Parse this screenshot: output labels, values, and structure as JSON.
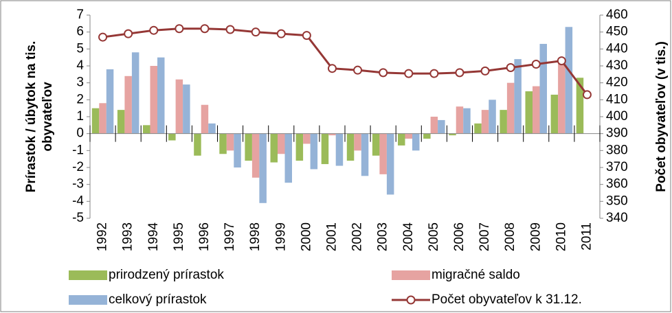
{
  "chart_data": {
    "type": "bar",
    "ylabel": [
      "Prírastok / úbytok na tis.",
      "obyvateľov"
    ],
    "y2label": "Počet obyvateľov (v tis.)",
    "categories": [
      "1992",
      "1993",
      "1994",
      "1995",
      "1996",
      "1997",
      "1998",
      "1999",
      "2000",
      "2001",
      "2002",
      "2003",
      "2004",
      "2005",
      "2006",
      "2007",
      "2008",
      "2009",
      "2010",
      "2011"
    ],
    "series": [
      {
        "name": "prirodzený prírastok",
        "color": "#9bbb59",
        "values": [
          1.5,
          1.4,
          0.5,
          -0.4,
          -1.3,
          -1.2,
          -1.6,
          -1.7,
          -1.6,
          -1.8,
          -1.6,
          -1.3,
          -0.7,
          -0.3,
          -0.1,
          0.6,
          1.4,
          2.5,
          2.3,
          3.3
        ]
      },
      {
        "name": "migračné saldo",
        "color": "#e6a3a1",
        "values": [
          1.8,
          3.4,
          4.0,
          3.2,
          1.7,
          -1.0,
          -2.6,
          -1.2,
          -0.6,
          -0.1,
          -1.0,
          -2.4,
          -0.3,
          1.0,
          1.6,
          1.4,
          3.0,
          2.8,
          4.3,
          null
        ]
      },
      {
        "name": "celkový prírastok",
        "color": "#95b3d7",
        "values": [
          3.8,
          4.8,
          4.5,
          2.9,
          0.6,
          -2.0,
          -4.1,
          -2.9,
          -2.1,
          -1.9,
          -2.5,
          -3.6,
          -1.0,
          0.8,
          1.5,
          2.0,
          4.4,
          5.3,
          6.3,
          null
        ]
      },
      {
        "name": "Počet obyvateľov k 31.12.",
        "color": "#953735",
        "type": "line",
        "axis": "y2",
        "values": [
          447,
          449,
          451,
          452,
          452,
          451.5,
          450,
          449,
          448,
          428.5,
          427.5,
          426,
          425.5,
          425.5,
          426,
          427,
          429,
          431,
          433,
          413
        ]
      }
    ],
    "ylim": [
      -5,
      7
    ],
    "yticks": [
      -5,
      -4,
      -3,
      -2,
      -1,
      0,
      1,
      2,
      3,
      4,
      5,
      6,
      7
    ],
    "y2lim": [
      340,
      460
    ],
    "y2ticks": [
      340,
      350,
      360,
      370,
      380,
      390,
      400,
      410,
      420,
      430,
      440,
      450,
      460
    ],
    "legend": "bottom"
  }
}
